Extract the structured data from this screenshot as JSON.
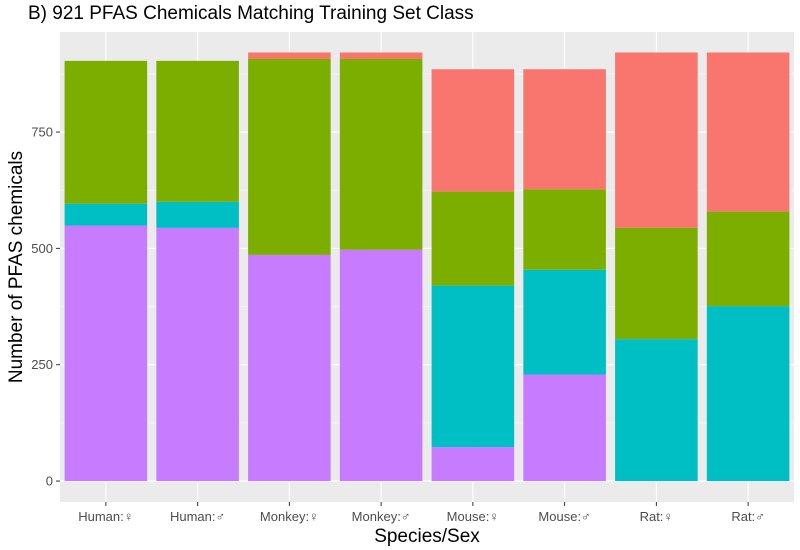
{
  "chart_data": {
    "type": "bar",
    "stacked": true,
    "title": "B) 921 PFAS Chemicals Matching Training Set Class",
    "xlabel": "Species/Sex",
    "ylabel": "Number of PFAS chemicals",
    "categories": [
      "Human:♀",
      "Human:♂",
      "Monkey:♀",
      "Monkey:♂",
      "Mouse:♀",
      "Mouse:♂",
      "Rat:♀",
      "Rat:♂"
    ],
    "yticks": [
      0,
      250,
      500,
      750
    ],
    "ylim": [
      -45,
      965
    ],
    "grid": true,
    "legend": "none",
    "series": [
      {
        "color": "#C77CFF",
        "values": [
          549,
          544,
          486,
          497,
          73,
          229,
          0,
          0
        ]
      },
      {
        "color": "#00BFC4",
        "values": [
          47,
          56,
          0,
          0,
          347,
          225,
          305,
          376
        ]
      },
      {
        "color": "#7CAE00",
        "values": [
          307,
          303,
          421,
          410,
          202,
          173,
          239,
          203
        ]
      },
      {
        "color": "#F8766D",
        "values": [
          0,
          0,
          14,
          14,
          263,
          258,
          377,
          342
        ]
      }
    ]
  }
}
